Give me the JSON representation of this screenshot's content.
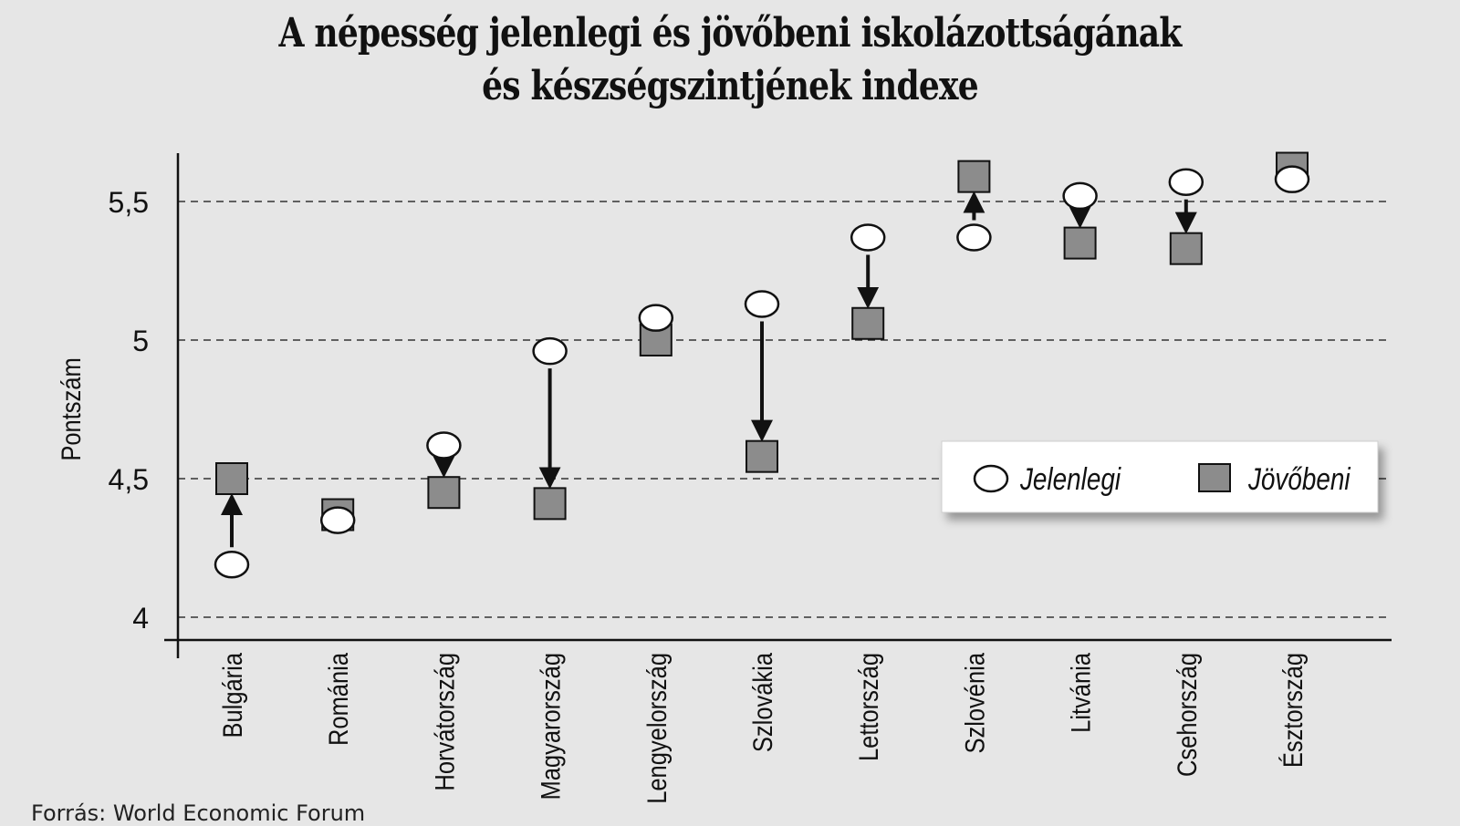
{
  "chart_data": {
    "type": "dot-arrow",
    "title": [
      "A népesség jelenlegi és jövőbeni iskolázottságának",
      "és készségszintjének indexe"
    ],
    "ylabel": "Pontszám",
    "xlabel": "",
    "ylim": [
      3.92,
      5.67
    ],
    "yticks": [
      "4",
      "4,5",
      "5",
      "5,5"
    ],
    "ytick_values": [
      4,
      4.5,
      5,
      5.5
    ],
    "grid": "dashed horizontal",
    "legend_position": "right",
    "categories": [
      "Bulgária",
      "Románia",
      "Horvátország",
      "Magyarország",
      "Lengyelország",
      "Szlovákia",
      "Lettország",
      "Szlovénia",
      "Litvánia",
      "Csehország",
      "Észtország"
    ],
    "series": [
      {
        "name": "Jelenlegi",
        "marker": "circle",
        "values": [
          4.19,
          4.35,
          4.62,
          4.96,
          5.08,
          5.13,
          5.37,
          5.37,
          5.52,
          5.57,
          5.58
        ]
      },
      {
        "name": "Jövőbeni",
        "marker": "square",
        "values": [
          4.5,
          4.37,
          4.45,
          4.41,
          5.0,
          4.58,
          5.06,
          5.59,
          5.35,
          5.33,
          5.62
        ]
      }
    ],
    "arrow_categories": [
      "Bulgária",
      "Horvátország",
      "Magyarország",
      "Szlovákia",
      "Lettország",
      "Szlovénia",
      "Litvánia",
      "Csehország"
    ],
    "colors": {
      "background": "#e6e6e6",
      "circle_fill": "#ffffff",
      "square_fill": "#8c8c8c",
      "ink": "#111111"
    }
  },
  "source": "Forrás: World Economic Forum"
}
